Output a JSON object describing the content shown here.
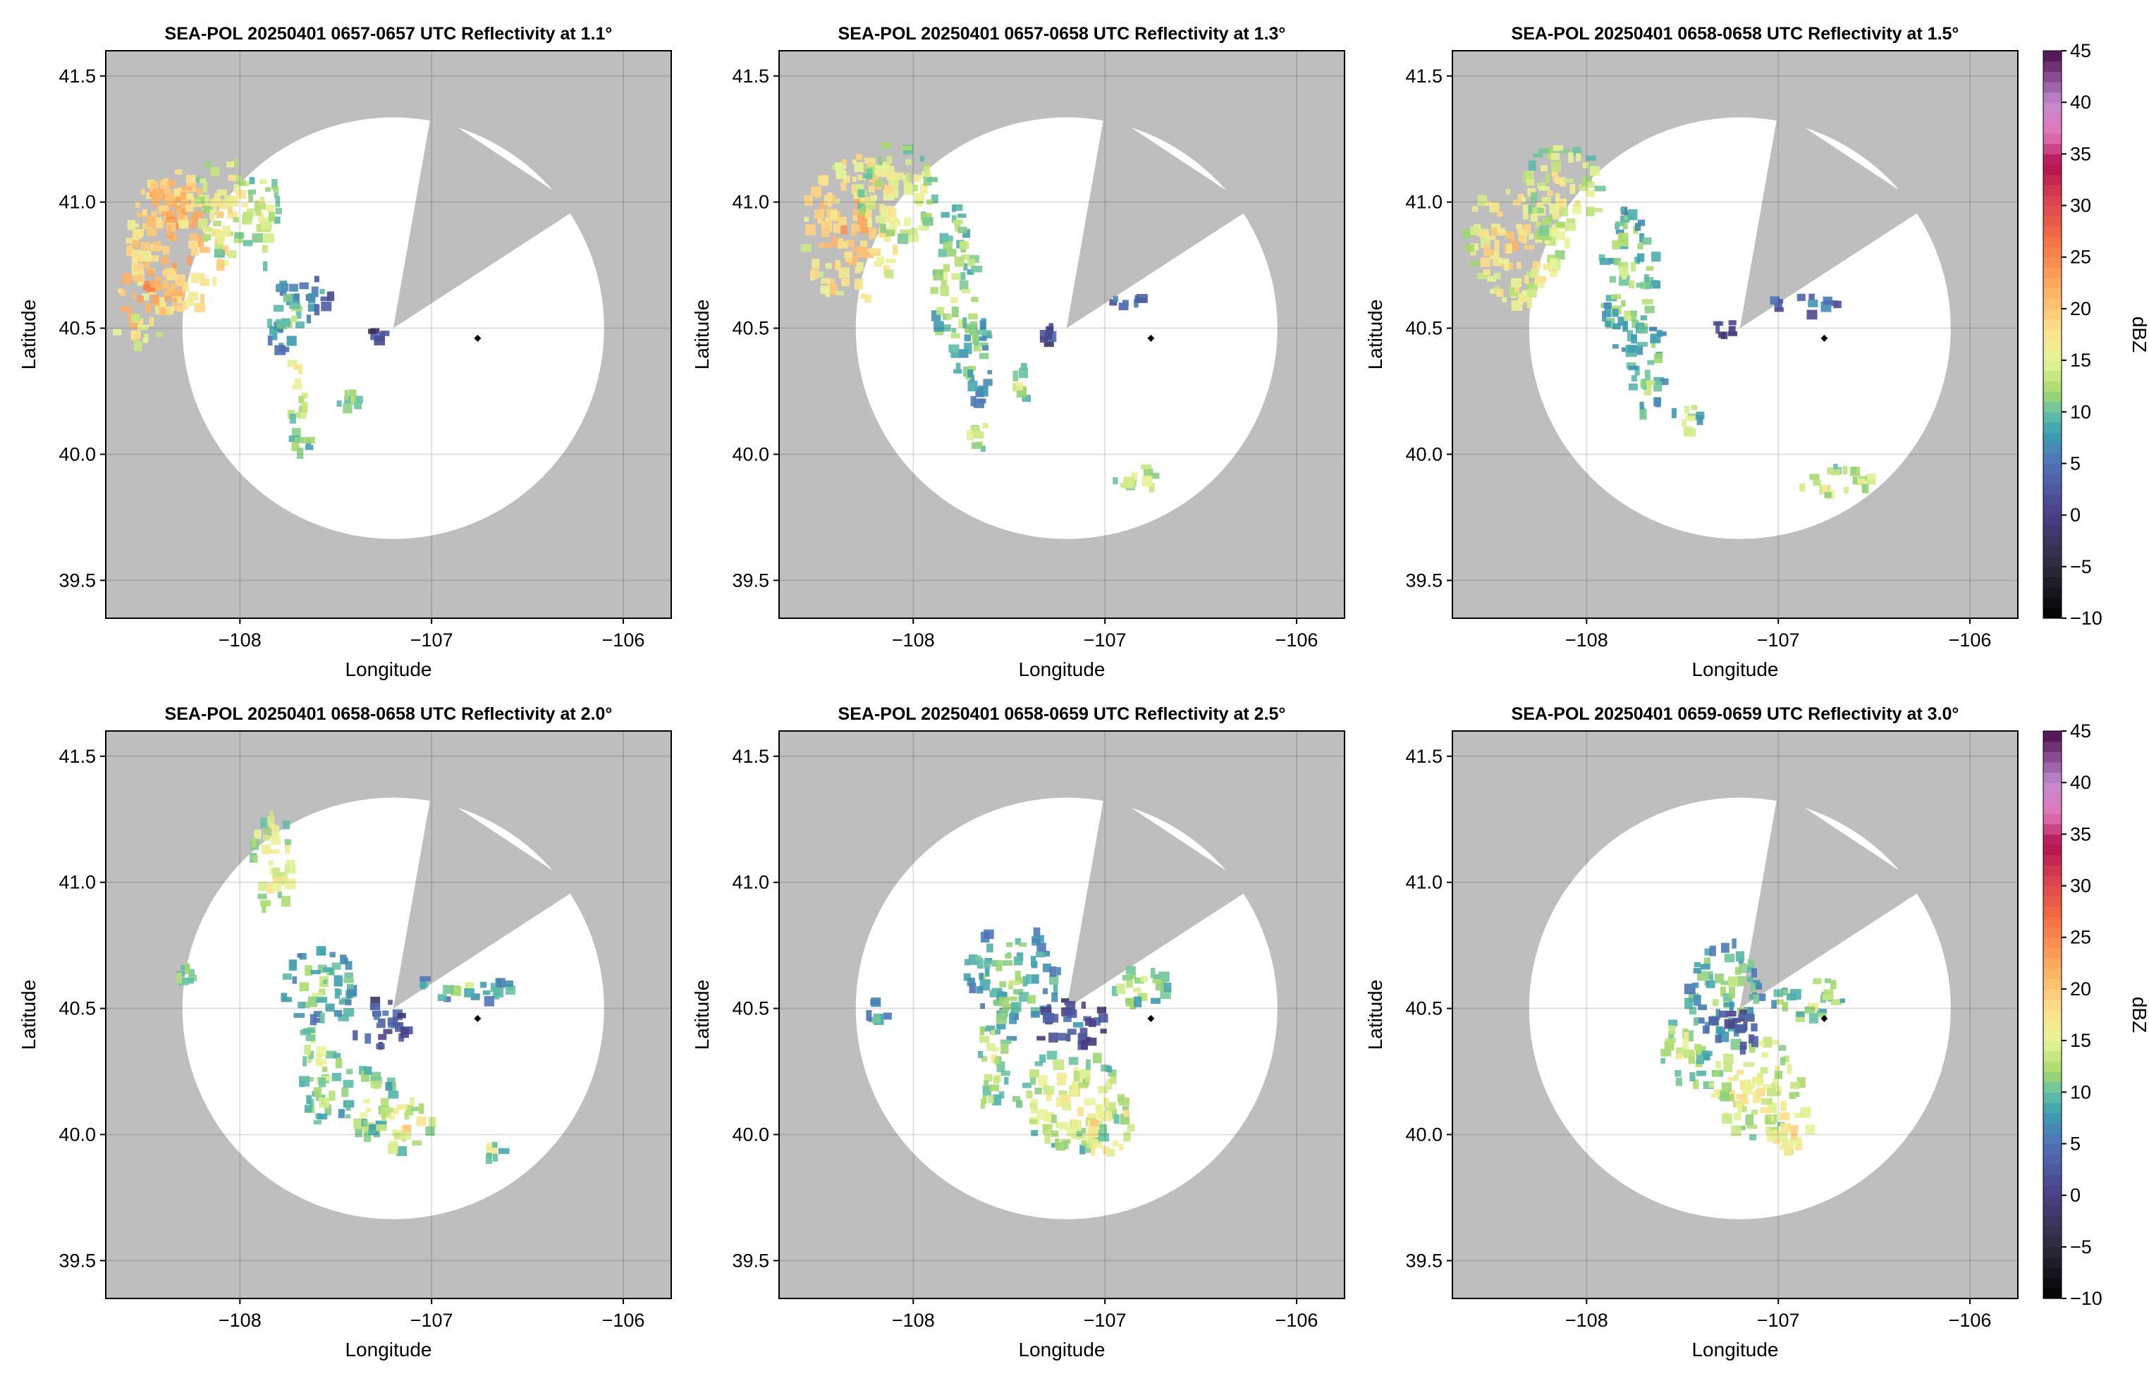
{
  "figure": {
    "frame_bg": "#bebebe",
    "range_disc": "#ffffff",
    "marker_color": "#000000"
  },
  "chart_data": [
    {
      "type": "heatmap",
      "title": "SEA-POL 20250401 0657-0657 UTC Reflectivity at 1.1°",
      "xlabel": "Longitude",
      "ylabel": "Latitude",
      "xlim": [
        -108.7,
        -105.75
      ],
      "ylim": [
        39.35,
        41.6
      ],
      "xticks": [
        -108,
        -107,
        -106
      ],
      "xtick_labels": [
        "−108",
        "−107",
        "−106"
      ],
      "yticks": [
        39.5,
        40.0,
        40.5,
        41.0,
        41.5
      ],
      "ytick_labels": [
        "39.5",
        "40.0",
        "40.5",
        "41.0",
        "41.5"
      ],
      "grid": true,
      "colorbar": false,
      "radar": {
        "lon": -107.2,
        "lat": 40.5,
        "range_deg": 1.1
      },
      "blocked_sector": {
        "from_deg": 10,
        "to_deg": 57
      },
      "marker": {
        "lon": -106.76,
        "lat": 40.46
      },
      "echoes": [
        {
          "lon": -108.35,
          "lat": 40.85,
          "dbz": 20,
          "rx": 0.25,
          "ry": 0.3
        },
        {
          "lon": -108.5,
          "lat": 40.65,
          "dbz": 22,
          "rx": 0.15,
          "ry": 0.15
        },
        {
          "lon": -108.4,
          "lat": 41.0,
          "dbz": 21,
          "rx": 0.15,
          "ry": 0.1
        },
        {
          "lon": -108.1,
          "lat": 41.0,
          "dbz": 15,
          "rx": 0.15,
          "ry": 0.2
        },
        {
          "lon": -107.9,
          "lat": 40.95,
          "dbz": 14,
          "rx": 0.1,
          "ry": 0.2
        },
        {
          "lon": -107.75,
          "lat": 40.55,
          "dbz": 9,
          "rx": 0.13,
          "ry": 0.16
        },
        {
          "lon": -107.72,
          "lat": 40.3,
          "dbz": 15,
          "rx": 0.06,
          "ry": 0.15
        },
        {
          "lon": -107.6,
          "lat": 40.65,
          "dbz": 6,
          "rx": 0.06,
          "ry": 0.06
        },
        {
          "lon": -107.3,
          "lat": 40.48,
          "dbz": 2,
          "rx": 0.04,
          "ry": 0.03
        },
        {
          "lon": -107.45,
          "lat": 40.22,
          "dbz": 10,
          "rx": 0.05,
          "ry": 0.06
        },
        {
          "lon": -107.7,
          "lat": 40.05,
          "dbz": 12,
          "rx": 0.05,
          "ry": 0.07
        },
        {
          "lon": -108.55,
          "lat": 40.5,
          "dbz": 16,
          "rx": 0.12,
          "ry": 0.06
        }
      ]
    },
    {
      "type": "heatmap",
      "title": "SEA-POL 20250401 0657-0658 UTC Reflectivity at 1.3°",
      "xlabel": "Longitude",
      "ylabel": "Latitude",
      "xlim": [
        -108.7,
        -105.75
      ],
      "ylim": [
        39.35,
        41.6
      ],
      "xticks": [
        -108,
        -107,
        -106
      ],
      "xtick_labels": [
        "−108",
        "−107",
        "−106"
      ],
      "yticks": [
        39.5,
        40.0,
        40.5,
        41.0,
        41.5
      ],
      "ytick_labels": [
        "39.5",
        "40.0",
        "40.5",
        "41.0",
        "41.5"
      ],
      "grid": true,
      "colorbar": false,
      "radar": {
        "lon": -107.2,
        "lat": 40.5,
        "range_deg": 1.1
      },
      "blocked_sector": {
        "from_deg": 10,
        "to_deg": 57
      },
      "marker": {
        "lon": -106.76,
        "lat": 40.46
      },
      "echoes": [
        {
          "lon": -108.35,
          "lat": 40.9,
          "dbz": 19,
          "rx": 0.25,
          "ry": 0.3
        },
        {
          "lon": -108.1,
          "lat": 41.05,
          "dbz": 15,
          "rx": 0.2,
          "ry": 0.2
        },
        {
          "lon": -107.8,
          "lat": 40.7,
          "dbz": 12,
          "rx": 0.12,
          "ry": 0.3
        },
        {
          "lon": -107.7,
          "lat": 40.4,
          "dbz": 9,
          "rx": 0.1,
          "ry": 0.2
        },
        {
          "lon": -107.68,
          "lat": 40.1,
          "dbz": 13,
          "rx": 0.06,
          "ry": 0.08
        },
        {
          "lon": -107.45,
          "lat": 40.3,
          "dbz": 13,
          "rx": 0.05,
          "ry": 0.07
        },
        {
          "lon": -107.32,
          "lat": 40.5,
          "dbz": 2,
          "rx": 0.04,
          "ry": 0.04
        },
        {
          "lon": -106.9,
          "lat": 40.62,
          "dbz": 6,
          "rx": 0.08,
          "ry": 0.03
        },
        {
          "lon": -106.85,
          "lat": 39.92,
          "dbz": 14,
          "rx": 0.15,
          "ry": 0.05
        }
      ]
    },
    {
      "type": "heatmap",
      "title": "SEA-POL 20250401 0658-0658 UTC Reflectivity at 1.5°",
      "xlabel": "Longitude",
      "ylabel": "Latitude",
      "xlim": [
        -108.7,
        -105.75
      ],
      "ylim": [
        39.35,
        41.6
      ],
      "xticks": [
        -108,
        -107,
        -106
      ],
      "xtick_labels": [
        "−108",
        "−107",
        "−106"
      ],
      "yticks": [
        39.5,
        40.0,
        40.5,
        41.0,
        41.5
      ],
      "ytick_labels": [
        "39.5",
        "40.0",
        "40.5",
        "41.0",
        "41.5"
      ],
      "grid": true,
      "colorbar": true,
      "radar": {
        "lon": -107.2,
        "lat": 40.5,
        "range_deg": 1.1
      },
      "blocked_sector": {
        "from_deg": 10,
        "to_deg": 57
      },
      "marker": {
        "lon": -106.76,
        "lat": 40.46
      },
      "echoes": [
        {
          "lon": -108.4,
          "lat": 40.85,
          "dbz": 17,
          "rx": 0.25,
          "ry": 0.25
        },
        {
          "lon": -108.15,
          "lat": 41.05,
          "dbz": 15,
          "rx": 0.2,
          "ry": 0.2
        },
        {
          "lon": -107.8,
          "lat": 40.7,
          "dbz": 11,
          "rx": 0.15,
          "ry": 0.3
        },
        {
          "lon": -107.7,
          "lat": 40.35,
          "dbz": 10,
          "rx": 0.1,
          "ry": 0.2
        },
        {
          "lon": -107.5,
          "lat": 40.15,
          "dbz": 12,
          "rx": 0.08,
          "ry": 0.08
        },
        {
          "lon": -107.3,
          "lat": 40.52,
          "dbz": 2,
          "rx": 0.05,
          "ry": 0.05
        },
        {
          "lon": -106.9,
          "lat": 40.6,
          "dbz": 5,
          "rx": 0.2,
          "ry": 0.04
        },
        {
          "lon": -106.7,
          "lat": 39.9,
          "dbz": 14,
          "rx": 0.2,
          "ry": 0.07
        }
      ]
    },
    {
      "type": "heatmap",
      "title": "SEA-POL 20250401 0658-0658 UTC Reflectivity at 2.0°",
      "xlabel": "Longitude",
      "ylabel": "Latitude",
      "xlim": [
        -108.7,
        -105.75
      ],
      "ylim": [
        39.35,
        41.6
      ],
      "xticks": [
        -108,
        -107,
        -106
      ],
      "xtick_labels": [
        "−108",
        "−107",
        "−106"
      ],
      "yticks": [
        39.5,
        40.0,
        40.5,
        41.0,
        41.5
      ],
      "ytick_labels": [
        "39.5",
        "40.0",
        "40.5",
        "41.0",
        "41.5"
      ],
      "grid": true,
      "colorbar": false,
      "radar": {
        "lon": -107.2,
        "lat": 40.5,
        "range_deg": 1.1
      },
      "blocked_sector": {
        "from_deg": 10,
        "to_deg": 57
      },
      "marker": {
        "lon": -106.76,
        "lat": 40.46
      },
      "echoes": [
        {
          "lon": -107.85,
          "lat": 41.1,
          "dbz": 15,
          "rx": 0.12,
          "ry": 0.2
        },
        {
          "lon": -107.6,
          "lat": 40.6,
          "dbz": 10,
          "rx": 0.2,
          "ry": 0.15
        },
        {
          "lon": -107.6,
          "lat": 40.3,
          "dbz": 12,
          "rx": 0.1,
          "ry": 0.25
        },
        {
          "lon": -107.35,
          "lat": 40.15,
          "dbz": 12,
          "rx": 0.15,
          "ry": 0.15
        },
        {
          "lon": -107.15,
          "lat": 40.05,
          "dbz": 15,
          "rx": 0.15,
          "ry": 0.1
        },
        {
          "lon": -107.3,
          "lat": 40.45,
          "dbz": 3,
          "rx": 0.15,
          "ry": 0.1
        },
        {
          "lon": -106.85,
          "lat": 40.6,
          "dbz": 10,
          "rx": 0.25,
          "ry": 0.06
        },
        {
          "lon": -108.3,
          "lat": 40.65,
          "dbz": 13,
          "rx": 0.04,
          "ry": 0.04
        },
        {
          "lon": -106.7,
          "lat": 39.95,
          "dbz": 13,
          "rx": 0.06,
          "ry": 0.04
        }
      ]
    },
    {
      "type": "heatmap",
      "title": "SEA-POL 20250401 0658-0659 UTC Reflectivity at 2.5°",
      "xlabel": "Longitude",
      "ylabel": "Latitude",
      "xlim": [
        -108.7,
        -105.75
      ],
      "ylim": [
        39.35,
        41.6
      ],
      "xticks": [
        -108,
        -107,
        -106
      ],
      "xtick_labels": [
        "−108",
        "−107",
        "−106"
      ],
      "yticks": [
        39.5,
        40.0,
        40.5,
        41.0,
        41.5
      ],
      "ytick_labels": [
        "39.5",
        "40.0",
        "40.5",
        "41.0",
        "41.5"
      ],
      "grid": true,
      "colorbar": false,
      "radar": {
        "lon": -107.2,
        "lat": 40.5,
        "range_deg": 1.1
      },
      "blocked_sector": {
        "from_deg": 10,
        "to_deg": 57
      },
      "marker": {
        "lon": -106.76,
        "lat": 40.46
      },
      "echoes": [
        {
          "lon": -107.5,
          "lat": 40.65,
          "dbz": 10,
          "rx": 0.25,
          "ry": 0.2
        },
        {
          "lon": -107.6,
          "lat": 40.3,
          "dbz": 12,
          "rx": 0.1,
          "ry": 0.2
        },
        {
          "lon": -107.2,
          "lat": 40.15,
          "dbz": 14,
          "rx": 0.3,
          "ry": 0.2
        },
        {
          "lon": -107.0,
          "lat": 40.05,
          "dbz": 18,
          "rx": 0.12,
          "ry": 0.12
        },
        {
          "lon": -107.2,
          "lat": 40.45,
          "dbz": 3,
          "rx": 0.2,
          "ry": 0.1
        },
        {
          "lon": -106.85,
          "lat": 40.6,
          "dbz": 12,
          "rx": 0.2,
          "ry": 0.07
        },
        {
          "lon": -108.2,
          "lat": 40.5,
          "dbz": 10,
          "rx": 0.05,
          "ry": 0.05
        }
      ]
    },
    {
      "type": "heatmap",
      "title": "SEA-POL 20250401 0659-0659 UTC Reflectivity at 3.0°",
      "xlabel": "Longitude",
      "ylabel": "Latitude",
      "xlim": [
        -108.7,
        -105.75
      ],
      "ylim": [
        39.35,
        41.6
      ],
      "xticks": [
        -108,
        -107,
        -106
      ],
      "xtick_labels": [
        "−108",
        "−107",
        "−106"
      ],
      "yticks": [
        39.5,
        40.0,
        40.5,
        41.0,
        41.5
      ],
      "ytick_labels": [
        "39.5",
        "40.0",
        "40.5",
        "41.0",
        "41.5"
      ],
      "grid": true,
      "colorbar": true,
      "radar": {
        "lon": -107.2,
        "lat": 40.5,
        "range_deg": 1.1
      },
      "blocked_sector": {
        "from_deg": 10,
        "to_deg": 57
      },
      "marker": {
        "lon": -106.76,
        "lat": 40.46
      },
      "echoes": [
        {
          "lon": -107.3,
          "lat": 40.6,
          "dbz": 10,
          "rx": 0.2,
          "ry": 0.2
        },
        {
          "lon": -107.5,
          "lat": 40.35,
          "dbz": 13,
          "rx": 0.12,
          "ry": 0.15
        },
        {
          "lon": -107.15,
          "lat": 40.2,
          "dbz": 15,
          "rx": 0.25,
          "ry": 0.2
        },
        {
          "lon": -106.95,
          "lat": 40.05,
          "dbz": 17,
          "rx": 0.12,
          "ry": 0.12
        },
        {
          "lon": -106.85,
          "lat": 40.55,
          "dbz": 12,
          "rx": 0.2,
          "ry": 0.08
        },
        {
          "lon": -107.25,
          "lat": 40.42,
          "dbz": 3,
          "rx": 0.15,
          "ry": 0.08
        }
      ]
    }
  ],
  "colorbar": {
    "label": "dBZ",
    "ticks": [
      45,
      40,
      35,
      30,
      25,
      20,
      15,
      10,
      5,
      0,
      -5,
      -10
    ],
    "tick_labels": [
      "45",
      "40",
      "35",
      "30",
      "25",
      "20",
      "15",
      "10",
      "5",
      "0",
      "−5",
      "−10"
    ],
    "stops": [
      {
        "v": -10,
        "color": "#000000"
      },
      {
        "v": -5,
        "color": "#2e2a3a"
      },
      {
        "v": 0,
        "color": "#4b3f86"
      },
      {
        "v": 5,
        "color": "#4f72b8"
      },
      {
        "v": 8,
        "color": "#3b9fb0"
      },
      {
        "v": 10,
        "color": "#66c2a5"
      },
      {
        "v": 12,
        "color": "#a6d96a"
      },
      {
        "v": 15,
        "color": "#e6f598"
      },
      {
        "v": 18,
        "color": "#fee08b"
      },
      {
        "v": 22,
        "color": "#fdae61"
      },
      {
        "v": 27,
        "color": "#f46d43"
      },
      {
        "v": 31,
        "color": "#d53e4f"
      },
      {
        "v": 34,
        "color": "#b2104f"
      },
      {
        "v": 37,
        "color": "#e377b8"
      },
      {
        "v": 40,
        "color": "#c38bcf"
      },
      {
        "v": 45,
        "color": "#4a0c4f"
      }
    ]
  }
}
